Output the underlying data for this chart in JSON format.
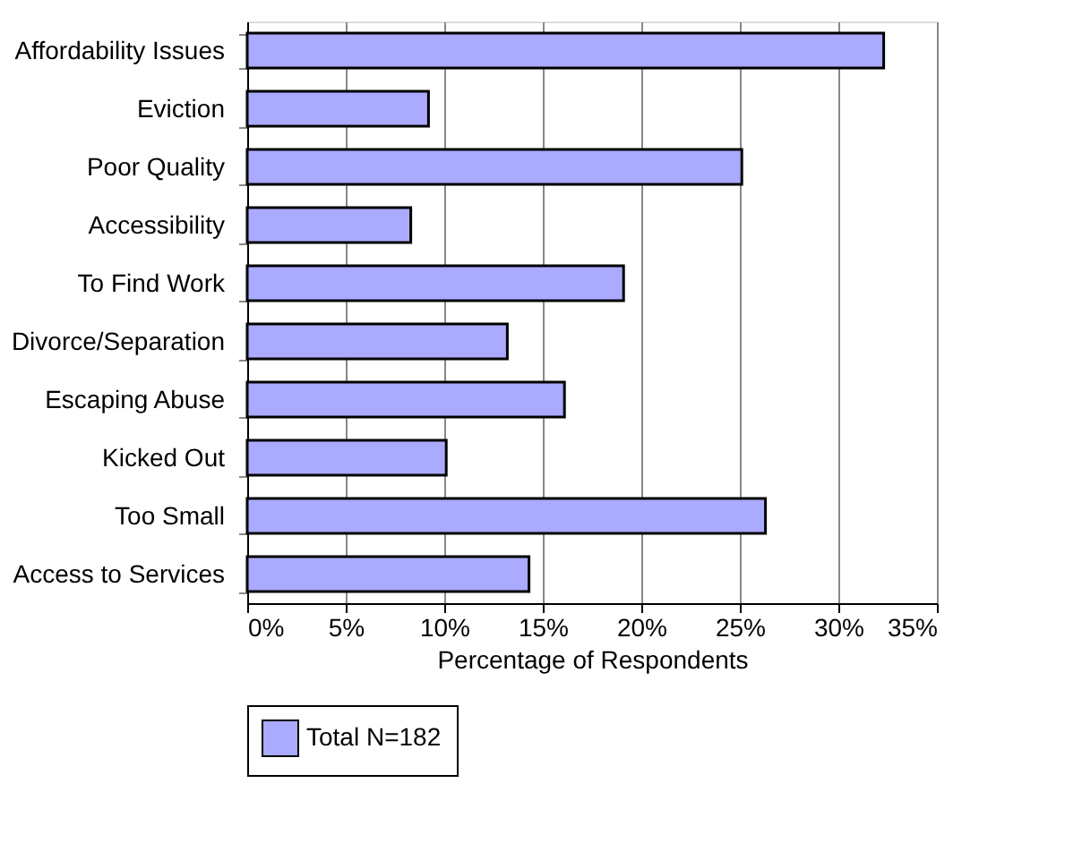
{
  "chart_data": {
    "type": "bar",
    "orientation": "horizontal",
    "xlabel": "Percentage of Respondents",
    "categories": [
      "Affordability Issues",
      "Eviction",
      "Poor Quality",
      "Accessibility",
      "To Find Work",
      "Divorce/Separation",
      "Escaping Abuse",
      "Kicked Out",
      "Too Small",
      "Access to Services"
    ],
    "series": [
      {
        "name": "Total N=182",
        "color": "#aaaaff",
        "values": [
          32.3,
          9.2,
          25.1,
          8.3,
          19.1,
          13.2,
          16.1,
          10.1,
          26.3,
          14.3
        ]
      }
    ],
    "xlim": [
      0,
      35
    ],
    "xticks": [
      {
        "value": 0,
        "label": "0%"
      },
      {
        "value": 5,
        "label": "5%"
      },
      {
        "value": 10,
        "label": "10%"
      },
      {
        "value": 15,
        "label": "15%"
      },
      {
        "value": 20,
        "label": "20%"
      },
      {
        "value": 25,
        "label": "25%"
      },
      {
        "value": 30,
        "label": "30%"
      },
      {
        "value": 35,
        "label": "35%"
      }
    ],
    "grid": "x",
    "legend": "bottom"
  }
}
